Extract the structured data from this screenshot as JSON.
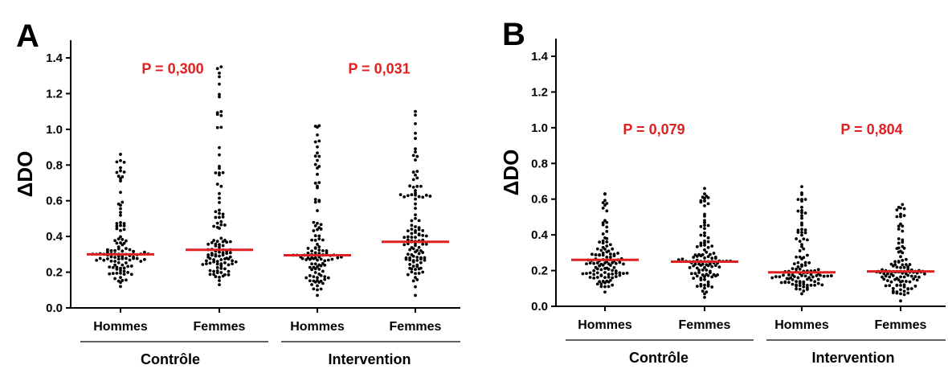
{
  "colors": {
    "dots": "#000000",
    "median": "#e02020",
    "pvalue": "#e02020",
    "axis": "#000000"
  },
  "chart_data": [
    {
      "type": "scatter",
      "subtype": "dot-strip (beeswarm) with median lines",
      "panel": "A",
      "ylabel": "ΔDO",
      "ylim": [
        0.0,
        1.4
      ],
      "yticks": [
        "0.0",
        "0.2",
        "0.4",
        "0.6",
        "0.8",
        "1.0",
        "1.2",
        "1.4"
      ],
      "categories": [
        "Hommes",
        "Femmes",
        "Hommes",
        "Femmes"
      ],
      "groups": [
        {
          "label": "Contrôle",
          "pvalue": "P = 0,300"
        },
        {
          "label": "Intervention",
          "pvalue": "P = 0,031"
        }
      ],
      "medians": [
        0.3,
        0.325,
        0.295,
        0.37
      ],
      "ranges": [
        [
          0.12,
          0.86
        ],
        [
          0.13,
          1.35
        ],
        [
          0.07,
          1.02
        ],
        [
          0.07,
          1.1
        ]
      ]
    },
    {
      "type": "scatter",
      "subtype": "dot-strip (beeswarm) with median lines",
      "panel": "B",
      "ylabel": "ΔDO",
      "ylim": [
        0.0,
        1.4
      ],
      "yticks": [
        "0.0",
        "0.2",
        "0.4",
        "0.6",
        "0.8",
        "1.0",
        "1.2",
        "1.4"
      ],
      "categories": [
        "Hommes",
        "Femmes",
        "Hommes",
        "Femmes"
      ],
      "groups": [
        {
          "label": "Contrôle",
          "pvalue": "P = 0,079"
        },
        {
          "label": "Intervention",
          "pvalue": "P = 0,804"
        }
      ],
      "medians": [
        0.26,
        0.25,
        0.19,
        0.195
      ],
      "ranges": [
        [
          0.08,
          0.63
        ],
        [
          0.05,
          0.66
        ],
        [
          0.07,
          0.67
        ],
        [
          0.03,
          0.57
        ]
      ]
    }
  ]
}
